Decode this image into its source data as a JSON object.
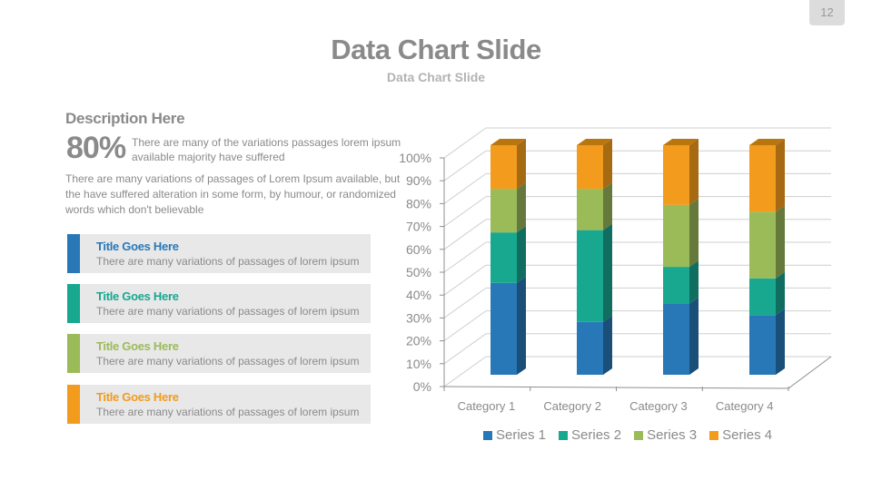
{
  "page_number": "12",
  "header": {
    "title": "Data Chart Slide",
    "subtitle": "Data Chart Slide"
  },
  "description": {
    "heading": "Description Here",
    "stat_value": "80%",
    "stat_text": "There are many of the variations passages lorem ipsum available majority have suffered",
    "paragraph": "There are many variations of passages  of Lorem Ipsum available, but the have suffered alteration in some  form, by humour, or randomized words which  don't believable"
  },
  "cards": [
    {
      "title": "Title Goes Here",
      "text": "There are many variations of passages of lorem ipsum",
      "color": "#2878b8"
    },
    {
      "title": "Title Goes Here",
      "text": "There are many variations of passages of lorem ipsum",
      "color": "#17a88f"
    },
    {
      "title": "Title Goes Here",
      "text": "There are many variations of passages of lorem ipsum",
      "color": "#9bbb59"
    },
    {
      "title": "Title Goes Here",
      "text": "There are many variations of passages of lorem ipsum",
      "color": "#f29b1c"
    }
  ],
  "chart_data": {
    "type": "bar",
    "subtype": "3d-stacked-100-percent",
    "title": "",
    "xlabel": "",
    "ylabel": "",
    "categories": [
      "Category 1",
      "Category 2",
      "Category 3",
      "Category 4"
    ],
    "series": [
      {
        "name": "Series 1",
        "color": "#2878b8",
        "side_color": "#1a4f7a",
        "values": [
          40,
          23,
          31,
          26
        ]
      },
      {
        "name": "Series 2",
        "color": "#17a88f",
        "side_color": "#0f6e5f",
        "values": [
          22,
          40,
          16,
          16
        ]
      },
      {
        "name": "Series 3",
        "color": "#9bbb59",
        "side_color": "#66793c",
        "values": [
          19,
          18,
          27,
          29
        ]
      },
      {
        "name": "Series 4",
        "color": "#f29b1c",
        "side_color": "#a66a12",
        "values": [
          19,
          19,
          26,
          29
        ]
      }
    ],
    "y_ticks": [
      "0%",
      "10%",
      "20%",
      "30%",
      "40%",
      "50%",
      "60%",
      "70%",
      "80%",
      "90%",
      "100%"
    ],
    "ylim": [
      0,
      100
    ],
    "grid": true,
    "legend_position": "bottom"
  }
}
